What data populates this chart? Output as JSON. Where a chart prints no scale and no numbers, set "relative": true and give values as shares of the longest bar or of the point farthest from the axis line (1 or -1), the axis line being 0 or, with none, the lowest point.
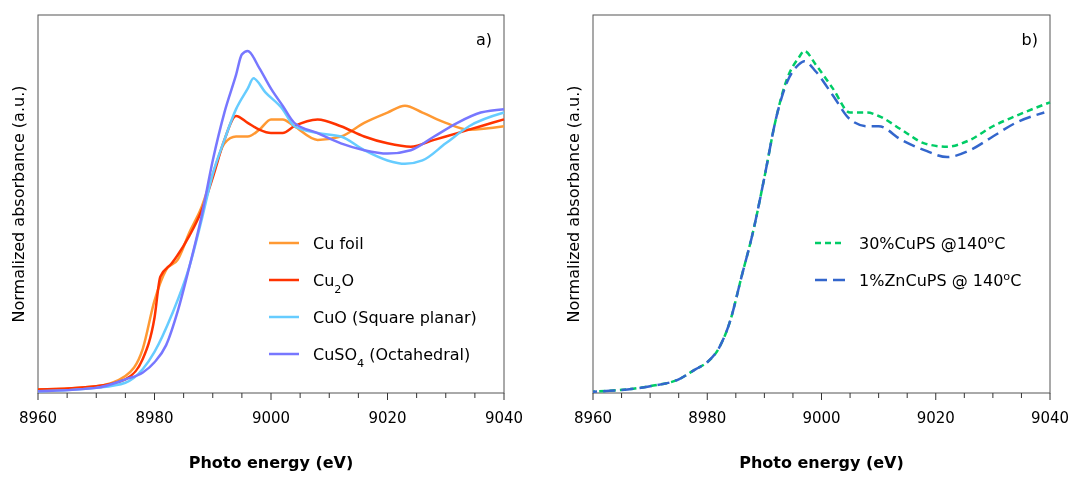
{
  "chart_data": [
    {
      "type": "line",
      "relative": true,
      "xlabel": "Photo energy (eV)",
      "ylabel": "Normalized absorbance  (a.u.)",
      "annotations": [
        "a)"
      ],
      "legend": "bottom right",
      "line_style": "solid",
      "xlim": [
        8960,
        9040
      ],
      "xticks": [
        8960,
        {
          "value": 8965,
          "label": null
        },
        {
          "value": 8970,
          "label": null
        },
        {
          "value": 8975,
          "label": null
        },
        8980,
        {
          "value": 8985,
          "label": null
        },
        {
          "value": 8990,
          "label": null
        },
        {
          "value": 8995,
          "label": null
        },
        9000,
        {
          "value": 9005,
          "label": null
        },
        {
          "value": 9010,
          "label": null
        },
        {
          "value": 9015,
          "label": null
        },
        9020,
        {
          "value": 9025,
          "label": null
        },
        {
          "value": 9030,
          "label": null
        },
        {
          "value": 9035,
          "label": null
        },
        9040
      ],
      "series": [
        {
          "name": "Cu foil",
          "color": "#ff9933",
          "x": [
            8960,
            8970,
            8975,
            8978,
            8980,
            8982,
            8984,
            8986,
            8988,
            8990,
            8992,
            8994,
            8996,
            8998,
            9000,
            9002,
            9004,
            9008,
            9012,
            9016,
            9020,
            9023,
            9026,
            9030,
            9034,
            9040
          ],
          "values": [
            0.01,
            0.02,
            0.05,
            0.13,
            0.27,
            0.36,
            0.39,
            0.47,
            0.54,
            0.64,
            0.73,
            0.75,
            0.75,
            0.77,
            0.8,
            0.8,
            0.78,
            0.74,
            0.75,
            0.79,
            0.82,
            0.84,
            0.82,
            0.79,
            0.77,
            0.78
          ]
        },
        {
          "name": "Cu$_{2}$O",
          "color": "#ff3300",
          "x": [
            8960,
            8970,
            8975,
            8978,
            8980,
            8981,
            8983,
            8986,
            8988,
            8990,
            8992,
            8994,
            8996,
            8998,
            9000,
            9002,
            9004,
            9008,
            9012,
            9016,
            9020,
            9024,
            9028,
            9032,
            9036,
            9040
          ],
          "values": [
            0.01,
            0.02,
            0.04,
            0.1,
            0.22,
            0.34,
            0.38,
            0.46,
            0.53,
            0.63,
            0.74,
            0.81,
            0.79,
            0.77,
            0.76,
            0.76,
            0.78,
            0.8,
            0.78,
            0.75,
            0.73,
            0.72,
            0.74,
            0.76,
            0.78,
            0.8
          ]
        },
        {
          "name": "CuO (Square planar)",
          "color": "#66ccff",
          "x": [
            8960,
            8970,
            8975,
            8978,
            8980,
            8983,
            8986,
            8988,
            8990,
            8992,
            8994,
            8996,
            8997,
            8999,
            9002,
            9004,
            9008,
            9012,
            9016,
            9020,
            9023,
            9026,
            9030,
            9034,
            9040
          ],
          "values": [
            0.005,
            0.015,
            0.03,
            0.07,
            0.12,
            0.23,
            0.37,
            0.5,
            0.64,
            0.74,
            0.83,
            0.89,
            0.92,
            0.88,
            0.83,
            0.78,
            0.76,
            0.75,
            0.71,
            0.68,
            0.67,
            0.68,
            0.73,
            0.78,
            0.82
          ]
        },
        {
          "name": "CuSO$_{4}$ (Octahedral)",
          "color": "#7777ff",
          "x": [
            8960,
            8970,
            8975,
            8978,
            8980,
            8982,
            8984,
            8986,
            8988,
            8990,
            8992,
            8994,
            8995,
            8996,
            8998,
            9000,
            9002,
            9004,
            9008,
            9012,
            9016,
            9020,
            9024,
            9028,
            9032,
            9036,
            9040
          ],
          "values": [
            0.005,
            0.015,
            0.04,
            0.06,
            0.09,
            0.14,
            0.24,
            0.37,
            0.51,
            0.68,
            0.82,
            0.93,
            0.99,
            1,
            0.95,
            0.89,
            0.84,
            0.79,
            0.76,
            0.73,
            0.71,
            0.7,
            0.71,
            0.75,
            0.79,
            0.82,
            0.83
          ]
        }
      ]
    },
    {
      "type": "line",
      "relative": true,
      "xlabel": "Photo energy (eV)",
      "ylabel": "Normalized absorbance  (a.u.)",
      "annotations": [
        "b)"
      ],
      "legend": "bottom right",
      "xlim": [
        8960,
        9040
      ],
      "xticks": [
        8960,
        {
          "value": 8965,
          "label": null
        },
        {
          "value": 8970,
          "label": null
        },
        {
          "value": 8975,
          "label": null
        },
        8980,
        {
          "value": 8985,
          "label": null
        },
        {
          "value": 8990,
          "label": null
        },
        {
          "value": 8995,
          "label": null
        },
        9000,
        {
          "value": 9005,
          "label": null
        },
        {
          "value": 9010,
          "label": null
        },
        {
          "value": 9015,
          "label": null
        },
        9020,
        {
          "value": 9025,
          "label": null
        },
        {
          "value": 9030,
          "label": null
        },
        {
          "value": 9035,
          "label": null
        },
        9040
      ],
      "series": [
        {
          "name": "30%CuPS  @140$^{o}$C",
          "color": "#00cc66",
          "line_style": "dashed",
          "x": [
            8960,
            8970,
            8975,
            8978,
            8980,
            8982,
            8984,
            8986,
            8988,
            8990,
            8992,
            8994,
            8996,
            8997,
            8999,
            9002,
            9005,
            9008,
            9010,
            9014,
            9018,
            9022,
            9026,
            9030,
            9034,
            9040
          ],
          "values": [
            0.004,
            0.02,
            0.04,
            0.07,
            0.09,
            0.13,
            0.21,
            0.34,
            0.47,
            0.63,
            0.8,
            0.92,
            0.98,
            1,
            0.96,
            0.89,
            0.82,
            0.82,
            0.81,
            0.77,
            0.73,
            0.72,
            0.74,
            0.78,
            0.81,
            0.85
          ]
        },
        {
          "name": "1%ZnCuPS @ 140$^{o}$C",
          "color": "#3366cc",
          "line_style": "dashed",
          "x": [
            8960,
            8970,
            8975,
            8978,
            8980,
            8982,
            8984,
            8986,
            8988,
            8990,
            8992,
            8994,
            8996,
            8997,
            8999,
            9002,
            9005,
            9008,
            9010,
            9014,
            9018,
            9022,
            9026,
            9030,
            9034,
            9039
          ],
          "values": [
            0.004,
            0.02,
            0.04,
            0.07,
            0.09,
            0.13,
            0.21,
            0.34,
            0.47,
            0.63,
            0.8,
            0.91,
            0.96,
            0.97,
            0.94,
            0.87,
            0.8,
            0.78,
            0.78,
            0.74,
            0.71,
            0.69,
            0.71,
            0.75,
            0.79,
            0.82
          ]
        }
      ]
    }
  ]
}
